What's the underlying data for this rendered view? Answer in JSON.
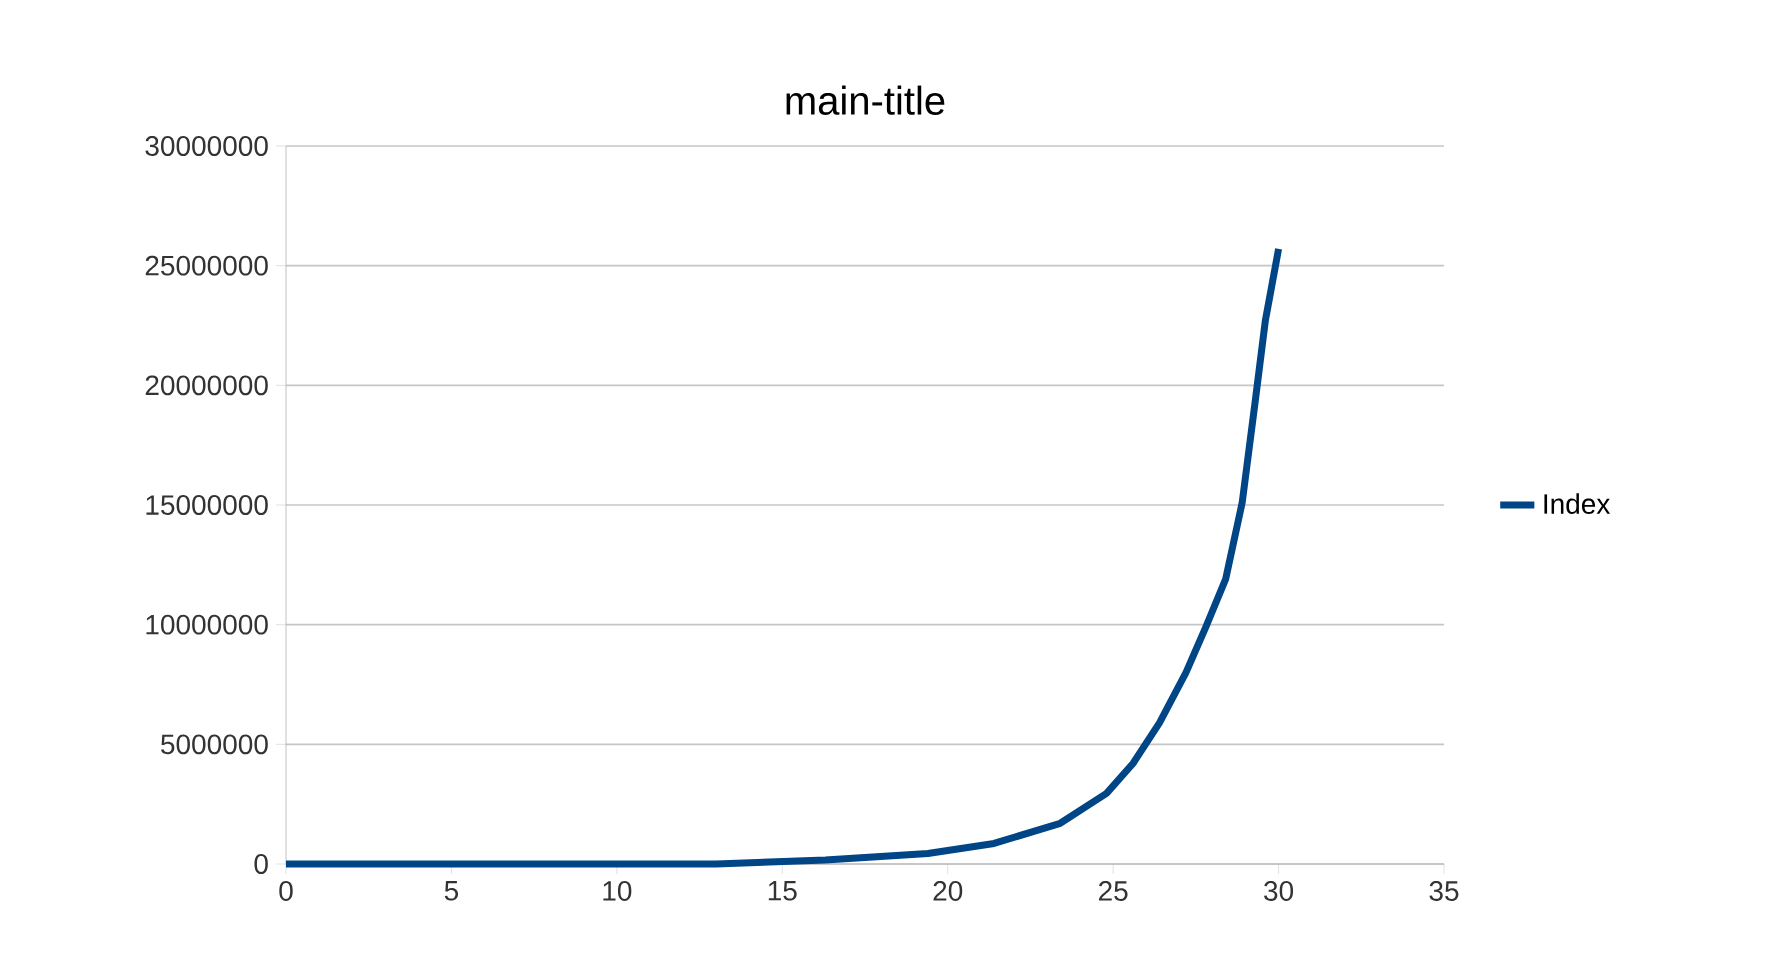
{
  "chart_data": {
    "type": "line",
    "title": "main-title",
    "series": [
      {
        "name": "Index",
        "color": "#004586",
        "x": [
          0,
          5,
          10,
          13,
          16.3,
          19.4,
          21.4,
          23.4,
          24.8,
          25.6,
          26.4,
          27.2,
          27.8,
          28.4,
          28.9,
          29.3,
          29.6,
          30
        ],
        "values": [
          0,
          0,
          0,
          0,
          170000,
          440000,
          860000,
          1700000,
          2950000,
          4200000,
          5900000,
          8000000,
          9900000,
          11900000,
          15100000,
          19400000,
          22700000,
          25700000
        ]
      }
    ],
    "xlim": [
      0,
      35
    ],
    "xticks": [
      0,
      5,
      10,
      15,
      20,
      25,
      30,
      35
    ],
    "ylim": [
      0,
      30000000
    ],
    "yticks": [
      0,
      5000000,
      10000000,
      15000000,
      20000000,
      25000000,
      30000000
    ],
    "grid": "y",
    "legend": "right",
    "marker": "none",
    "line_style": "solid"
  }
}
